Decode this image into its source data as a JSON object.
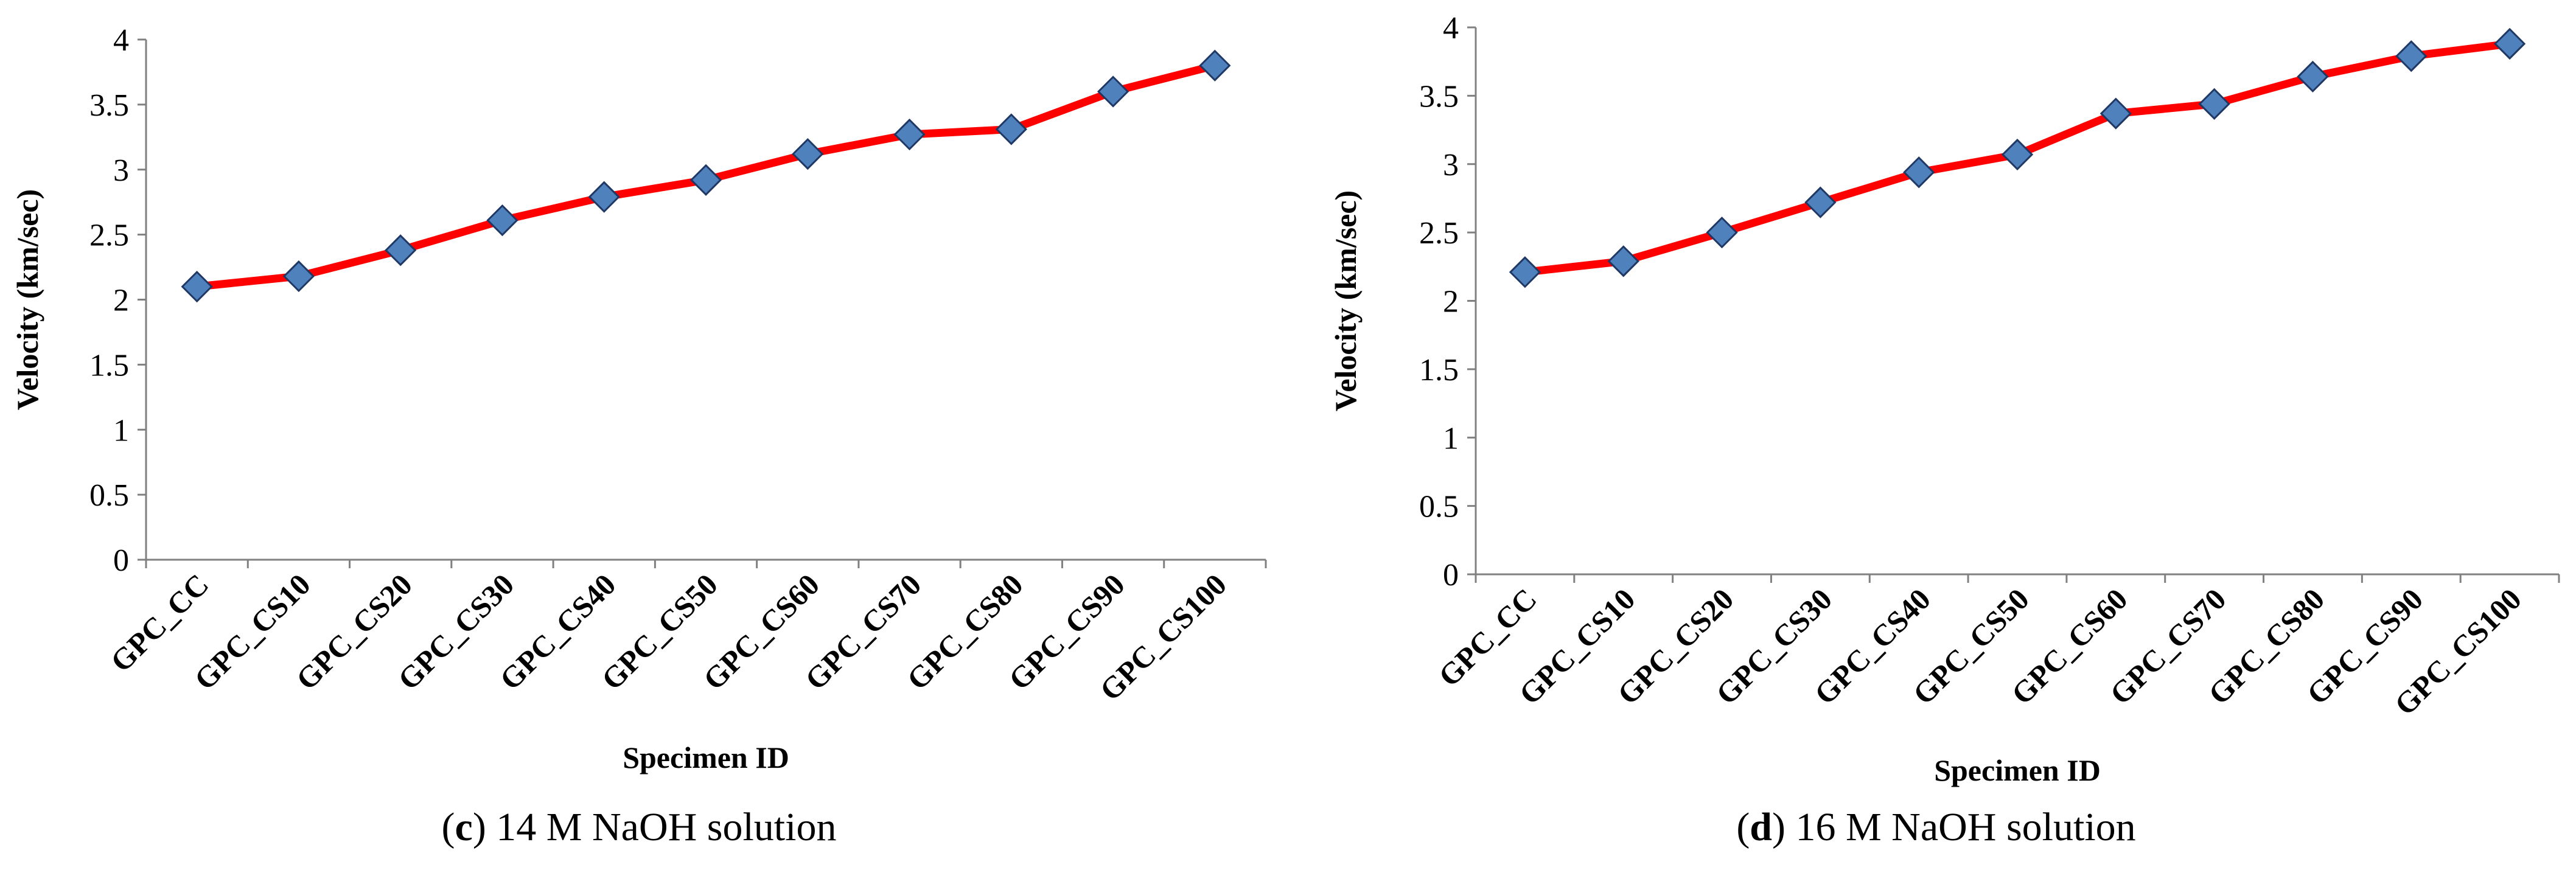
{
  "colors": {
    "line": "#ff0000",
    "marker_fill": "#4f81bd",
    "marker_stroke": "#1f3864",
    "axis": "#808080"
  },
  "chart_data": [
    {
      "id": "c",
      "type": "line",
      "categories": [
        "GPC_CC",
        "GPC_CS10",
        "GPC_CS20",
        "GPC_CS30",
        "GPC_CS40",
        "GPC_CS50",
        "GPC_CS60",
        "GPC_CS70",
        "GPC_CS80",
        "GPC_CS90",
        "GPC_CS100"
      ],
      "values": [
        2.1,
        2.18,
        2.38,
        2.61,
        2.79,
        2.92,
        3.12,
        3.27,
        3.31,
        3.6,
        3.8
      ],
      "xlabel": "Specimen ID",
      "ylabel": "Velocity (km/sec)",
      "ylim": [
        0,
        4
      ],
      "yticks": [
        "0",
        "0.5",
        "1",
        "1.5",
        "2",
        "2.5",
        "3",
        "3.5",
        "4"
      ],
      "grid": false,
      "caption_letter": "c",
      "caption_text": " 14 M NaOH solution"
    },
    {
      "id": "d",
      "type": "line",
      "categories": [
        "GPC_CC",
        "GPC_CS10",
        "GPC_CS20",
        "GPC_CS30",
        "GPC_CS40",
        "GPC_CS50",
        "GPC_CS60",
        "GPC_CS70",
        "GPC_CS80",
        "GPC_CS90",
        "GPC_CS100"
      ],
      "values": [
        2.21,
        2.29,
        2.5,
        2.72,
        2.94,
        3.07,
        3.37,
        3.44,
        3.64,
        3.79,
        3.88
      ],
      "xlabel": "Specimen ID",
      "ylabel": "Velocity (km/sec)",
      "ylim": [
        0,
        4
      ],
      "yticks": [
        "0",
        "0.5",
        "1",
        "1.5",
        "2",
        "2.5",
        "3",
        "3.5",
        "4"
      ],
      "grid": false,
      "caption_letter": "d",
      "caption_text": " 16 M NaOH solution"
    }
  ]
}
